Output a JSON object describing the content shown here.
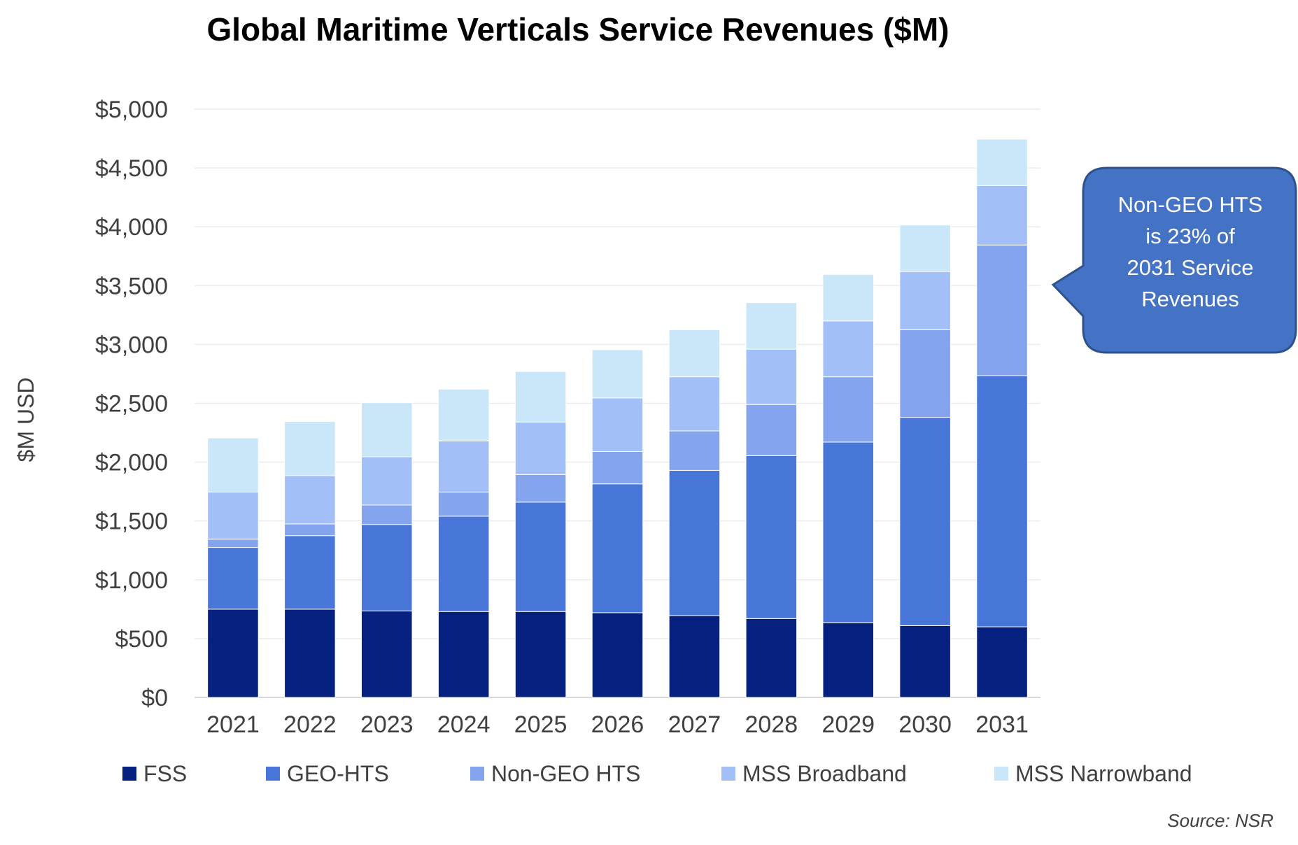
{
  "chart_data": {
    "type": "bar",
    "stacked": true,
    "title": "Global Maritime Verticals Service Revenues ($M)",
    "ylabel": "$M USD",
    "xlabel": "",
    "ylim": [
      0,
      5000
    ],
    "yticks": [
      "$0",
      "$500",
      "$1,000",
      "$1,500",
      "$2,000",
      "$2,500",
      "$3,000",
      "$3,500",
      "$4,000",
      "$4,500",
      "$5,000"
    ],
    "categories": [
      "2021",
      "2022",
      "2023",
      "2024",
      "2025",
      "2026",
      "2027",
      "2028",
      "2029",
      "2030",
      "2031"
    ],
    "grid": true,
    "legend_position": "bottom",
    "series": [
      {
        "name": "FSS",
        "color": "#05207F",
        "values": [
          750,
          750,
          735,
          730,
          730,
          720,
          695,
          670,
          635,
          610,
          600
        ]
      },
      {
        "name": "GEO-HTS",
        "color": "#4876D8",
        "values": [
          525,
          625,
          735,
          810,
          930,
          1095,
          1235,
          1385,
          1535,
          1770,
          2135
        ]
      },
      {
        "name": "Non-GEO HTS",
        "color": "#84A4EE",
        "values": [
          70,
          100,
          165,
          205,
          235,
          275,
          335,
          435,
          555,
          745,
          1110
        ]
      },
      {
        "name": "MSS Broadband",
        "color": "#A3BFF7",
        "values": [
          400,
          410,
          410,
          435,
          445,
          455,
          460,
          470,
          475,
          495,
          505
        ]
      },
      {
        "name": "MSS Narrowband",
        "color": "#C9E7F9",
        "values": [
          460,
          460,
          460,
          440,
          430,
          410,
          400,
          395,
          395,
          395,
          395
        ]
      }
    ],
    "annotations": [
      {
        "lines": [
          "Non-GEO HTS",
          "is 23% of",
          "2031 Service",
          "Revenues"
        ],
        "target_category": "2031"
      }
    ],
    "source": "Source:  NSR"
  }
}
